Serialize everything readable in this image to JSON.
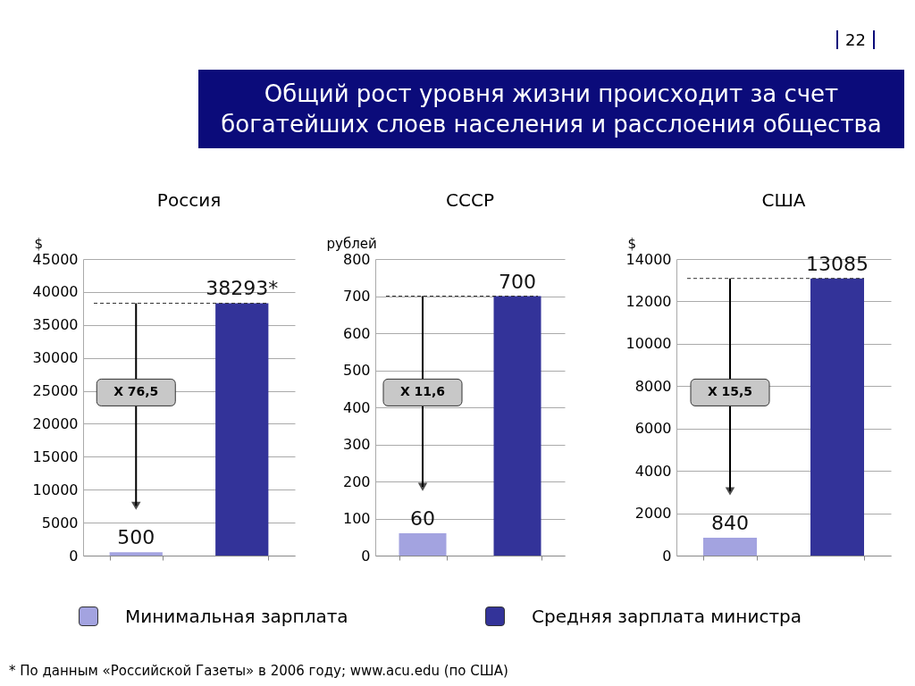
{
  "chart_data": [
    {
      "type": "other",
      "title": "Общий рост уровня жизни происходит за счет богатейших слоев населения и расслоения общества",
      "annotations": [
        "22",
        "* По данным «Российской Газеты» в 2006 году; www.acu.edu (по США)"
      ]
    },
    {
      "type": "bar",
      "title": "Россия",
      "ylabel": "$",
      "categories": [
        null,
        null
      ],
      "series": [
        {
          "name": "Минимальная зарплата",
          "color": "#a3a3e0",
          "values": [
            500,
            null
          ],
          "value_labels": [
            "500",
            null
          ]
        },
        {
          "name": "Средняя зарплата министра",
          "color": "#333399",
          "values": [
            null,
            38293
          ],
          "value_labels": [
            null,
            "38293*"
          ]
        }
      ],
      "ylim": [
        0,
        45000
      ],
      "yticks": [
        0,
        5000,
        10000,
        15000,
        20000,
        25000,
        30000,
        35000,
        40000,
        45000
      ],
      "grid": "y",
      "legend": "bottom",
      "ref_lines": [
        {
          "axis": "y",
          "value": 38293,
          "line_style": "dashed"
        }
      ],
      "annotations": [
        "X 76,5"
      ]
    },
    {
      "type": "bar",
      "title": "СССР",
      "ylabel": "рублей",
      "categories": [
        null,
        null
      ],
      "series": [
        {
          "name": "Минимальная зарплата",
          "color": "#a3a3e0",
          "values": [
            60,
            null
          ],
          "value_labels": [
            "60",
            null
          ]
        },
        {
          "name": "Средняя зарплата министра",
          "color": "#333399",
          "values": [
            null,
            700
          ],
          "value_labels": [
            null,
            "700"
          ]
        }
      ],
      "ylim": [
        0,
        800
      ],
      "yticks": [
        0,
        100,
        200,
        300,
        400,
        500,
        600,
        700,
        800
      ],
      "grid": "y",
      "legend": "bottom",
      "ref_lines": [
        {
          "axis": "y",
          "value": 700,
          "line_style": "dashed"
        }
      ],
      "annotations": [
        "X 11,6"
      ]
    },
    {
      "type": "bar",
      "title": "США",
      "ylabel": "$",
      "categories": [
        null,
        null
      ],
      "series": [
        {
          "name": "Минимальная зарплата",
          "color": "#a3a3e0",
          "values": [
            840,
            null
          ],
          "value_labels": [
            "840",
            null
          ]
        },
        {
          "name": "Средняя зарплата министра",
          "color": "#333399",
          "values": [
            null,
            13085
          ],
          "value_labels": [
            null,
            "13085"
          ]
        }
      ],
      "ylim": [
        0,
        14000
      ],
      "yticks": [
        0,
        2000,
        4000,
        6000,
        8000,
        10000,
        12000,
        14000
      ],
      "grid": "y",
      "legend": "bottom",
      "ref_lines": [
        {
          "axis": "y",
          "value": 13085,
          "line_style": "dashed"
        }
      ],
      "annotations": [
        "X 15,5"
      ]
    }
  ]
}
